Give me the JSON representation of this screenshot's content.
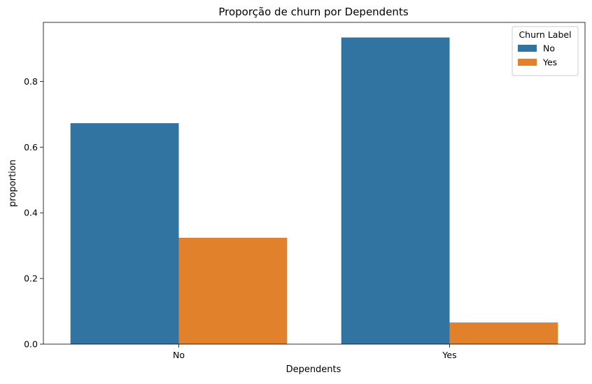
{
  "chart_data": {
    "type": "bar",
    "title": "Proporção de churn por Dependents",
    "xlabel": "Dependents",
    "ylabel": "proportion",
    "categories": [
      "No",
      "Yes"
    ],
    "series": [
      {
        "name": "No",
        "values": [
          0.673,
          0.934
        ],
        "color": "#3274a1"
      },
      {
        "name": "Yes",
        "values": [
          0.324,
          0.066
        ],
        "color": "#e1812c"
      }
    ],
    "ylim": [
      0,
      0.98
    ],
    "yticks": [
      0.0,
      0.2,
      0.4,
      0.6,
      0.8
    ],
    "ytick_labels": [
      "0.0",
      "0.2",
      "0.4",
      "0.6",
      "0.8"
    ],
    "legend": {
      "title": "Churn Label",
      "placement": "top-right"
    },
    "grid": false
  }
}
